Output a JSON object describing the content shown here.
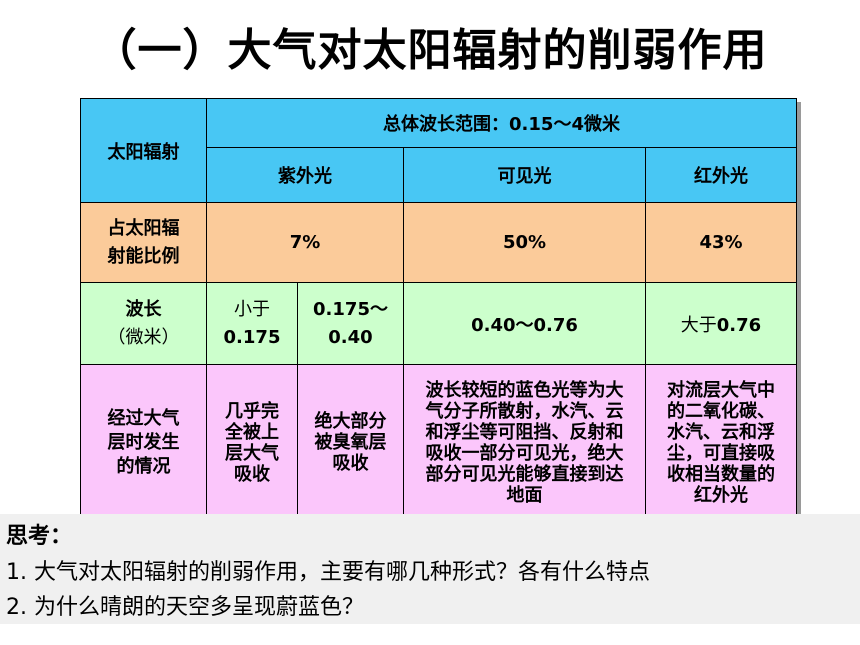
{
  "title": "（一）大气对太阳辐射的削弱作用",
  "table": {
    "corner": "太阳辐射",
    "range": "总体波长范围：0.15～4微米",
    "bands": {
      "uv": "紫外光",
      "visible": "可见光",
      "ir": "红外光"
    },
    "proportion": {
      "label_l1": "占太阳辐",
      "label_l2": "射能比例",
      "uv": "7%",
      "visible": "50%",
      "ir": "43%"
    },
    "wavelength": {
      "label_l1": "波长",
      "label_l2": "（微米）",
      "uv1_l1": "小于",
      "uv1_l2": "0.175",
      "uv2_l1": "0.175～",
      "uv2_l2": "0.40",
      "visible": "0.40～0.76",
      "ir_prefix": "大于",
      "ir_value": "0.76"
    },
    "process": {
      "label_l1": "经过大气",
      "label_l2": "层时发生",
      "label_l3": "的情况",
      "uv1": [
        "几乎完",
        "全被上",
        "层大气",
        "吸收"
      ],
      "uv2": [
        "绝大部分",
        "被臭氧层",
        "吸收"
      ],
      "visible": [
        "波长较短的蓝色光等为大",
        "气分子所散射，水汽、云",
        "和浮尘等可阻挡、反射和",
        "吸收一部分可见光，绝大",
        "部分可见光能够直接到达",
        "地面"
      ],
      "ir": [
        "对流层大气中",
        "的二氧化碳、",
        "水汽、云和浮",
        "尘，可直接吸",
        "收相当数量的",
        "红外光"
      ]
    }
  },
  "think": {
    "label": "思考：",
    "q1": "1.  大气对太阳辐射的削弱作用，主要有哪几种形式？各有什么特点",
    "q2": "2.  为什么晴朗的天空多呈现蔚蓝色？"
  }
}
